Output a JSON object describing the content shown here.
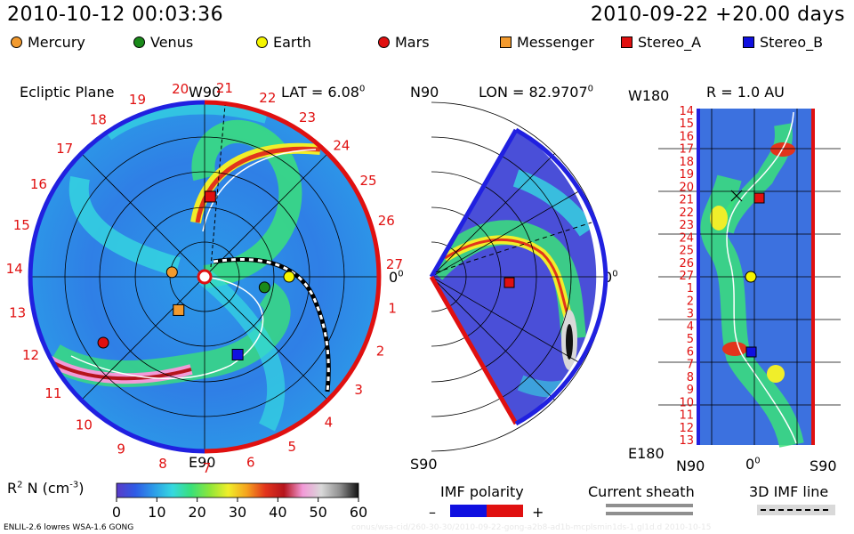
{
  "header": {
    "model_time": "2010-10-12 00:03:36",
    "run_info": "2010-09-22 +20.00 days"
  },
  "legend": [
    {
      "label": "Mercury",
      "shape": "circle",
      "color": "#f29a2e"
    },
    {
      "label": "Venus",
      "shape": "circle",
      "color": "#1a8a1a"
    },
    {
      "label": "Earth",
      "shape": "circle",
      "color": "#f5f500"
    },
    {
      "label": "Mars",
      "shape": "circle",
      "color": "#e01010"
    },
    {
      "label": "Messenger",
      "shape": "square",
      "color": "#f29a2e"
    },
    {
      "label": "Stereo_A",
      "shape": "square",
      "color": "#e01010"
    },
    {
      "label": "Stereo_B",
      "shape": "square",
      "color": "#1010e0"
    }
  ],
  "panels": {
    "ecliptic": {
      "title": "Ecliptic Plane",
      "top_label": "W90",
      "lat_label": "LAT = 6.08",
      "lat_sup": "0",
      "bottom_label": "E90",
      "right_label": "0",
      "right_sup": "0"
    },
    "meridional": {
      "top_label": "N90",
      "lon_label": "LON = 82.9707",
      "lon_sup": "0",
      "bottom_label": "S90",
      "right_label": "0",
      "right_sup": "0"
    },
    "map": {
      "top_left": "W180",
      "r_label": "R = 1.0 AU",
      "bottom_left": "E180",
      "x_left": "N90",
      "x_mid": "0",
      "x_mid_sup": "0",
      "x_right": "S90"
    }
  },
  "rotation_numbers_red": [
    "21",
    "22",
    "23",
    "24",
    "25",
    "26",
    "27",
    "1",
    "2",
    "3",
    "4",
    "5",
    "6",
    "7",
    "8",
    "9",
    "10",
    "11",
    "12",
    "13",
    "14",
    "15",
    "16",
    "17",
    "18",
    "19",
    "20"
  ],
  "map_rows": [
    "14",
    "15",
    "16",
    "17",
    "18",
    "19",
    "20",
    "21",
    "22",
    "23",
    "24",
    "25",
    "26",
    "27",
    "1",
    "2",
    "3",
    "4",
    "5",
    "6",
    "7",
    "8",
    "9",
    "10",
    "11",
    "12",
    "13"
  ],
  "colorbar": {
    "label": "R",
    "label_sup": "2",
    "label_rest": " N (cm",
    "label_sup2": "-3",
    "label_end": ")",
    "ticks": [
      "0",
      "10",
      "20",
      "30",
      "40",
      "50",
      "60"
    ],
    "colors": [
      "#5a3bc8",
      "#2f5be6",
      "#2c9be8",
      "#35d8e0",
      "#39e07a",
      "#8de63a",
      "#f0ee2a",
      "#f5a21e",
      "#e2341c",
      "#b5141c",
      "#f29ad8",
      "#d9d9d9",
      "#8f8f8f",
      "#111111"
    ]
  },
  "footer_legend": {
    "imf_title": "IMF polarity",
    "minus": "–",
    "plus": "+",
    "current_sheath": "Current sheath",
    "imf_line": "3D IMF line"
  },
  "footer_left": "ENLIL-2.6 lowres WSA-1.6 GONG",
  "footer_right_watermark": "conus/wsa-cid/260-30-30/2010-09-22-gong-a2b8-ad1b-mcplsmin1ds-1.gl1d.d   2010-10-15",
  "chart_data": {
    "type": "heatmap",
    "title": "",
    "quantity": "R^2 N (cm^-3)",
    "colorbar_range": [
      0,
      60
    ],
    "colorbar_ticks": [
      0,
      10,
      20,
      30,
      40,
      50,
      60
    ],
    "ecliptic_plane": {
      "bodies": [
        {
          "name": "Mercury",
          "angle_deg": 172,
          "r_au": 0.39
        },
        {
          "name": "Venus",
          "angle_deg": -10,
          "r_au": 0.72
        },
        {
          "name": "Earth",
          "angle_deg": 0,
          "r_au": 1.0
        },
        {
          "name": "Mars",
          "angle_deg": 213,
          "r_au": 1.43
        },
        {
          "name": "Messenger",
          "angle_deg": 232,
          "r_au": 0.5
        },
        {
          "name": "Stereo_A",
          "angle_deg": 86,
          "r_au": 0.95
        },
        {
          "name": "Stereo_B",
          "angle_deg": 293,
          "r_au": 1.0
        }
      ]
    },
    "meridional_plane": {
      "longitude_deg": 82.9707,
      "lat_range": [
        -90,
        90
      ]
    },
    "lon_lat_map": {
      "radius_au": 1.0,
      "lon_axis": [
        "W180",
        "E180"
      ],
      "lat_axis": [
        "N90",
        "0",
        "S90"
      ]
    }
  }
}
